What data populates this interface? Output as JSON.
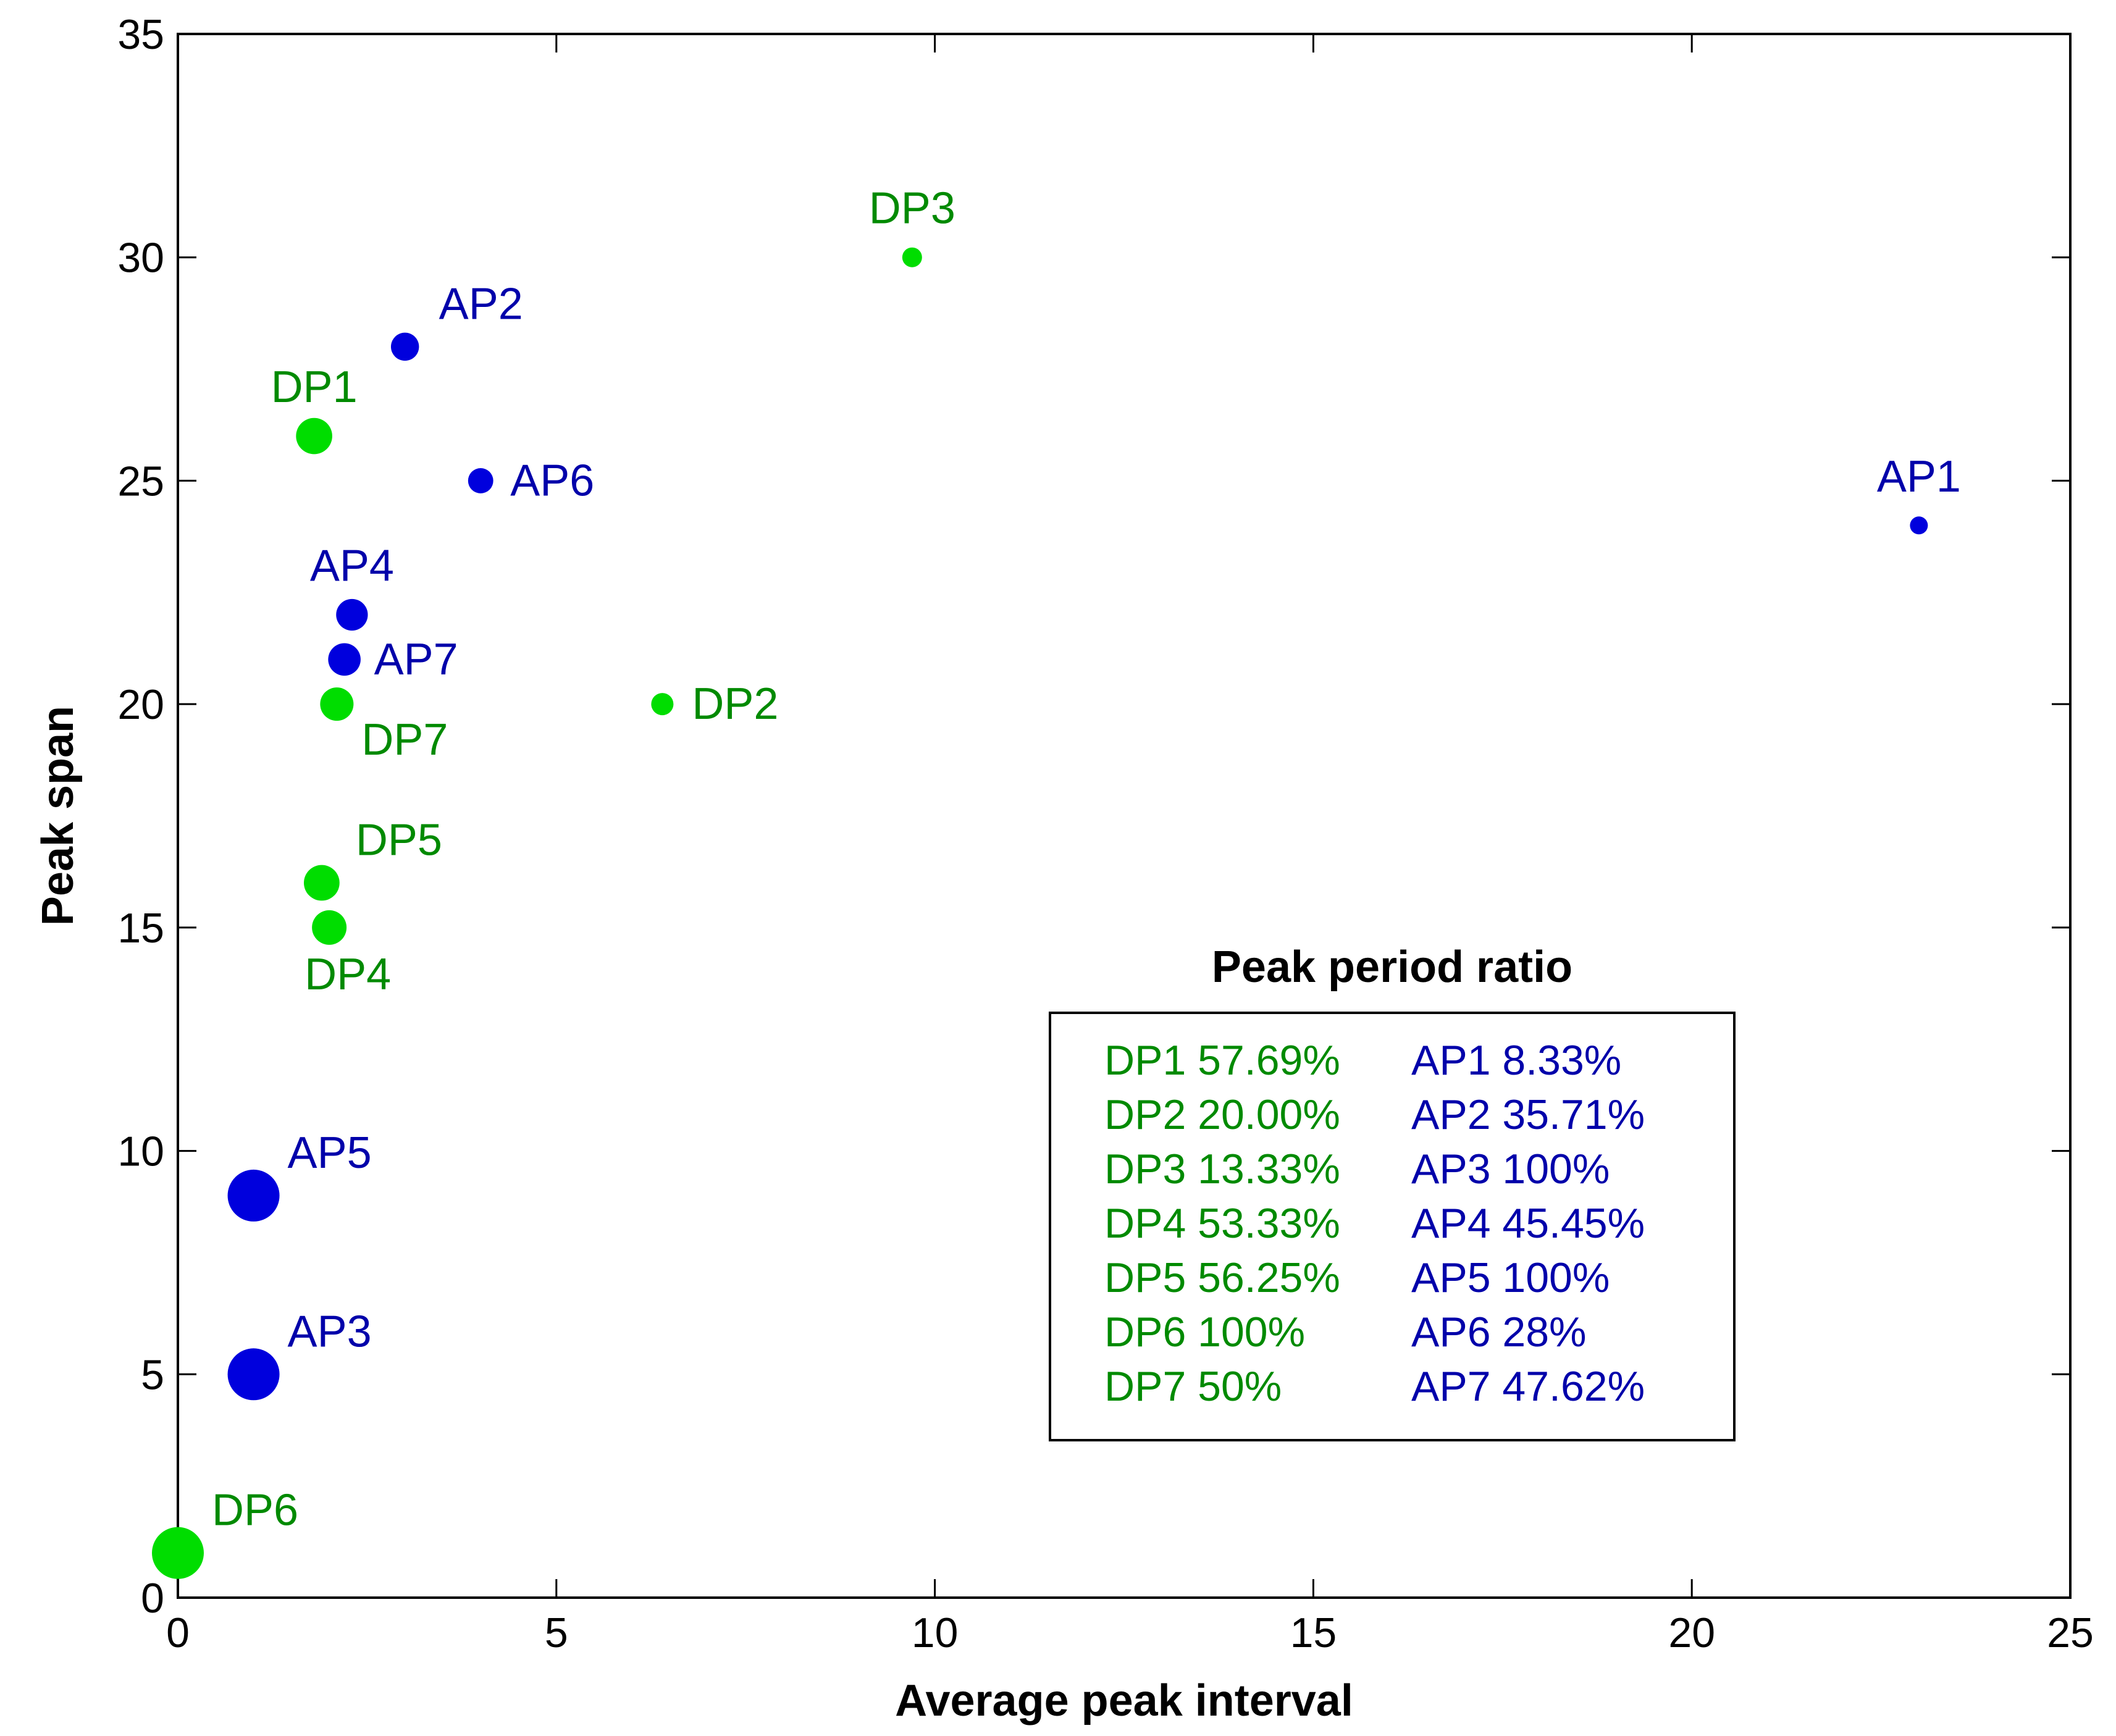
{
  "chart_data": {
    "type": "scatter",
    "xlabel": "Average peak interval",
    "ylabel": "Peak span",
    "xlim": [
      0,
      25
    ],
    "ylim": [
      0,
      35
    ],
    "x_ticks": [
      0,
      5,
      10,
      15,
      20,
      25
    ],
    "y_ticks": [
      0,
      5,
      10,
      15,
      20,
      25,
      30,
      35
    ],
    "grid": false,
    "colors": {
      "DP": "#00dd00",
      "AP": "#0000dd",
      "DP_text": "#008a00",
      "AP_text": "#0000aa"
    },
    "series": [
      {
        "name": "DP",
        "points": [
          {
            "label": "DP1",
            "x": 1.8,
            "y": 26,
            "ratio": 57.69,
            "label_pos": "above"
          },
          {
            "label": "DP2",
            "x": 6.4,
            "y": 20,
            "ratio": 20.0,
            "label_pos": "right"
          },
          {
            "label": "DP3",
            "x": 9.7,
            "y": 30,
            "ratio": 13.33,
            "label_pos": "above"
          },
          {
            "label": "DP4",
            "x": 2.0,
            "y": 15,
            "ratio": 53.33,
            "label_pos": "below"
          },
          {
            "label": "DP5",
            "x": 1.9,
            "y": 16,
            "ratio": 56.25,
            "label_pos": "upper-right"
          },
          {
            "label": "DP6",
            "x": 0.0,
            "y": 1,
            "ratio": 100,
            "label_pos": "upper-right"
          },
          {
            "label": "DP7",
            "x": 2.1,
            "y": 20,
            "ratio": 50,
            "label_pos": "lower-right"
          }
        ]
      },
      {
        "name": "AP",
        "points": [
          {
            "label": "AP1",
            "x": 23.0,
            "y": 24,
            "ratio": 8.33,
            "label_pos": "above"
          },
          {
            "label": "AP2",
            "x": 3.0,
            "y": 28,
            "ratio": 35.71,
            "label_pos": "upper-right"
          },
          {
            "label": "AP3",
            "x": 1.0,
            "y": 5,
            "ratio": 100,
            "label_pos": "upper-right"
          },
          {
            "label": "AP4",
            "x": 2.3,
            "y": 22,
            "ratio": 45.45,
            "label_pos": "above"
          },
          {
            "label": "AP5",
            "x": 1.0,
            "y": 9,
            "ratio": 100,
            "label_pos": "upper-right"
          },
          {
            "label": "AP6",
            "x": 4.0,
            "y": 25,
            "ratio": 28,
            "label_pos": "right"
          },
          {
            "label": "AP7",
            "x": 2.2,
            "y": 21,
            "ratio": 47.62,
            "label_pos": "right"
          }
        ]
      }
    ],
    "legend": {
      "title": "Peak period ratio",
      "placement": "lower-right",
      "dp_entries": [
        "DP1 57.69%",
        "DP2 20.00%",
        "DP3 13.33%",
        "DP4 53.33%",
        "DP5 56.25%",
        "DP6 100%",
        "DP7 50%"
      ],
      "ap_entries": [
        "AP1 8.33%",
        "AP2 35.71%",
        "AP3 100%",
        "AP4 45.45%",
        "AP5 100%",
        "AP6 28%",
        "AP7 47.62%"
      ]
    }
  }
}
